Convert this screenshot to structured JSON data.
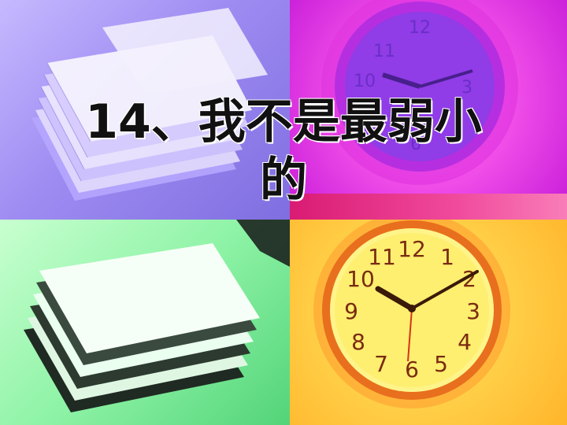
{
  "slide": {
    "title_line1": "14、我不是最弱小",
    "title_line2": "的"
  },
  "clock": {
    "numbers": [
      "12",
      "1",
      "2",
      "3",
      "4",
      "5",
      "6",
      "7",
      "8",
      "9",
      "10",
      "11"
    ],
    "time": "10:10"
  },
  "colors": {
    "top_left_tint": "#9f8cf2",
    "top_right_tint": "#f24fe9",
    "bottom_left_tint": "#8ef3a6",
    "bottom_right_tint": "#ffd24a",
    "title_text": "#111111"
  }
}
